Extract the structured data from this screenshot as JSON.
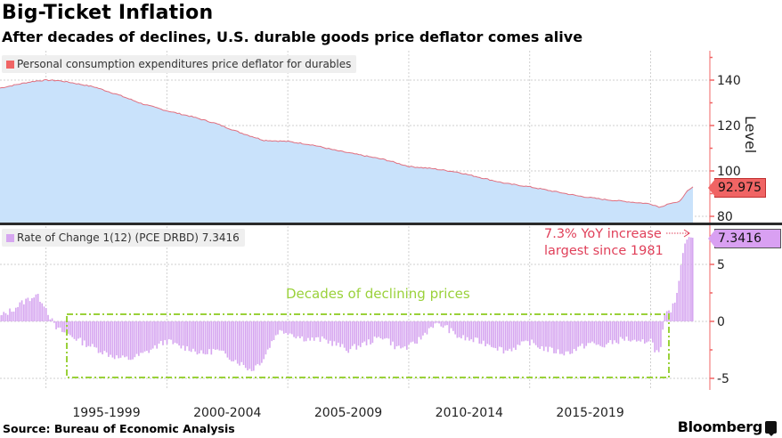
{
  "header": {
    "title": "Big-Ticket Inflation",
    "subtitle": "After decades of declines, U.S. durable goods price deflator comes alive"
  },
  "footer": {
    "source": "Source: Bureau of Economic Analysis",
    "brand": "Bloomberg"
  },
  "colors": {
    "top_fill": "#c9e2fb",
    "top_line": "#e07080",
    "top_axis": "#f06464",
    "bar_fill": "#d6a6f0",
    "annotation_red": "#e0405a",
    "annotation_green": "#9ad13a",
    "divider": "#2a2a2a"
  },
  "chart_data": [
    {
      "type": "area",
      "panel": "top",
      "legend": "Personal consumption expenditures price deflator for durables",
      "ylabel": "Level",
      "yticks": [
        80,
        100,
        120,
        140
      ],
      "ylim": [
        78,
        154
      ],
      "last_value_label": "92.975",
      "x_start": 1993.1,
      "x_end": 2021.75,
      "grid": true,
      "legend_position": "top-left",
      "x": [
        1993.1,
        1994.0,
        1994.5,
        1995.0,
        1995.5,
        1996.0,
        1997.0,
        1998.0,
        1999.0,
        2000.0,
        2001.0,
        2002.0,
        2003.0,
        2004.0,
        2005.0,
        2006.0,
        2007.0,
        2008.0,
        2009.0,
        2010.0,
        2011.0,
        2012.0,
        2013.0,
        2014.0,
        2015.0,
        2016.0,
        2017.0,
        2018.0,
        2019.0,
        2020.0,
        2020.4,
        2020.7,
        2021.0,
        2021.3,
        2021.5,
        2021.75
      ],
      "values": [
        136.5,
        138.5,
        139.5,
        140.0,
        139.8,
        139.0,
        137.0,
        133.5,
        129.5,
        126.5,
        124.0,
        121.0,
        117.0,
        113.5,
        113.0,
        111.5,
        109.0,
        107.0,
        105.0,
        102.0,
        101.0,
        99.5,
        97.0,
        94.5,
        93.0,
        91.0,
        89.0,
        87.5,
        86.5,
        85.5,
        84.0,
        85.5,
        85.8,
        87.5,
        91.0,
        92.975
      ]
    },
    {
      "type": "bar",
      "panel": "bottom",
      "legend": "Rate of Change 1(12) (PCE DRBD) 7.3416",
      "yticks": [
        -5,
        0,
        5
      ],
      "ylim": [
        -5.5,
        8.2
      ],
      "last_value_label": "7.3416",
      "x_start": 1993.1,
      "x_end": 2021.75,
      "grid": true,
      "legend_position": "top-left",
      "x_categories": [
        "1995-1999",
        "2000-2004",
        "2005-2009",
        "2010-2014",
        "2015-2019"
      ],
      "anchor_x": [
        1993.1,
        1993.6,
        1994.0,
        1994.3,
        1994.6,
        1994.9,
        1995.1,
        1995.4,
        1996.0,
        1996.5,
        1997.0,
        1997.5,
        1998.0,
        1998.5,
        1999.0,
        1999.5,
        2000.0,
        2000.5,
        2001.0,
        2001.5,
        2002.0,
        2002.5,
        2003.0,
        2003.5,
        2004.0,
        2004.3,
        2004.6,
        2005.0,
        2005.5,
        2006.0,
        2006.5,
        2007.0,
        2007.5,
        2008.0,
        2008.5,
        2009.0,
        2009.5,
        2010.0,
        2010.5,
        2011.0,
        2011.5,
        2012.0,
        2012.5,
        2013.0,
        2013.5,
        2014.0,
        2014.5,
        2015.0,
        2015.5,
        2016.0,
        2016.5,
        2017.0,
        2017.5,
        2018.0,
        2018.5,
        2019.0,
        2019.5,
        2020.0,
        2020.2,
        2020.4,
        2020.6,
        2020.8,
        2021.0,
        2021.15,
        2021.3,
        2021.45,
        2021.6,
        2021.75
      ],
      "anchor_values": [
        0.4,
        1.0,
        1.6,
        2.0,
        2.3,
        1.7,
        0.8,
        -0.6,
        -1.2,
        -1.8,
        -2.3,
        -2.8,
        -3.2,
        -3.3,
        -2.9,
        -2.3,
        -1.7,
        -2.2,
        -2.4,
        -2.9,
        -2.5,
        -3.0,
        -3.6,
        -4.3,
        -3.3,
        -2.0,
        -0.9,
        -0.9,
        -1.4,
        -1.6,
        -1.6,
        -2.0,
        -2.5,
        -2.1,
        -1.7,
        -1.3,
        -2.3,
        -2.3,
        -1.5,
        -0.3,
        -0.4,
        -1.3,
        -1.6,
        -1.8,
        -2.1,
        -2.6,
        -2.2,
        -1.8,
        -2.3,
        -2.6,
        -2.8,
        -2.4,
        -1.9,
        -2.2,
        -1.8,
        -1.5,
        -2.0,
        -1.5,
        -2.5,
        -3.0,
        0.4,
        0.9,
        1.5,
        3.0,
        5.5,
        7.0,
        7.4,
        7.3416
      ]
    }
  ],
  "annotations": {
    "red_line1": "7.3% YoY increase",
    "red_line2": "largest since 1981",
    "green": "Decades of declining prices"
  }
}
